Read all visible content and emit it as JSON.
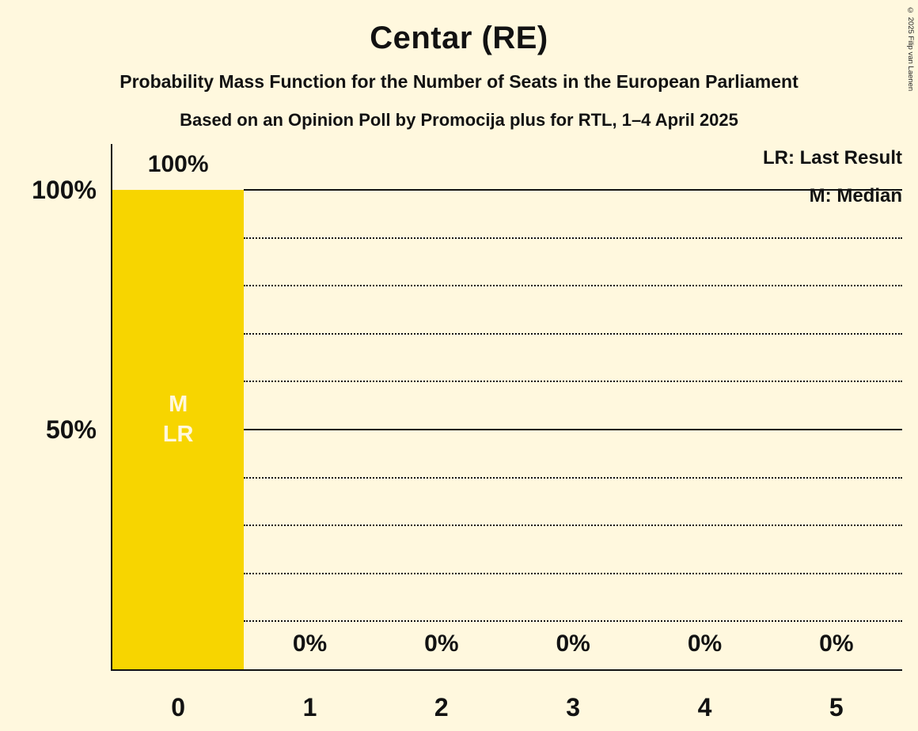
{
  "title": "Centar (RE)",
  "subtitle": "Probability Mass Function for the Number of Seats in the European Parliament",
  "source_line": "Based on an Opinion Poll by Promocija plus for RTL, 1–4 April 2025",
  "copyright": "© 2025 Filip van Laenen",
  "legend": {
    "lr": "LR: Last Result",
    "m": "M: Median"
  },
  "bar_annotation": {
    "m": "M",
    "lr": "LR"
  },
  "y_axis_labels": {
    "p100": "100%",
    "p50": "50%"
  },
  "chart_data": {
    "type": "bar",
    "title": "Centar (RE)",
    "categories": [
      "0",
      "1",
      "2",
      "3",
      "4",
      "5"
    ],
    "values": [
      100,
      0,
      0,
      0,
      0,
      0
    ],
    "value_labels": [
      "100%",
      "0%",
      "0%",
      "0%",
      "0%",
      "0%"
    ],
    "xlabel": "",
    "ylabel": "",
    "ylim": [
      0,
      100
    ],
    "gridlines_percent": [
      10,
      20,
      30,
      40,
      50,
      60,
      70,
      80,
      90,
      100
    ],
    "solid_gridlines_percent": [
      50,
      100
    ],
    "median_seats": 0,
    "last_result_seats": 0,
    "legend_position": "top-right",
    "grid": "dotted",
    "colors": {
      "bar": "#F7D500",
      "background": "#FFF8DE",
      "text": "#121212",
      "bar_label": "#FFF8DE"
    }
  }
}
